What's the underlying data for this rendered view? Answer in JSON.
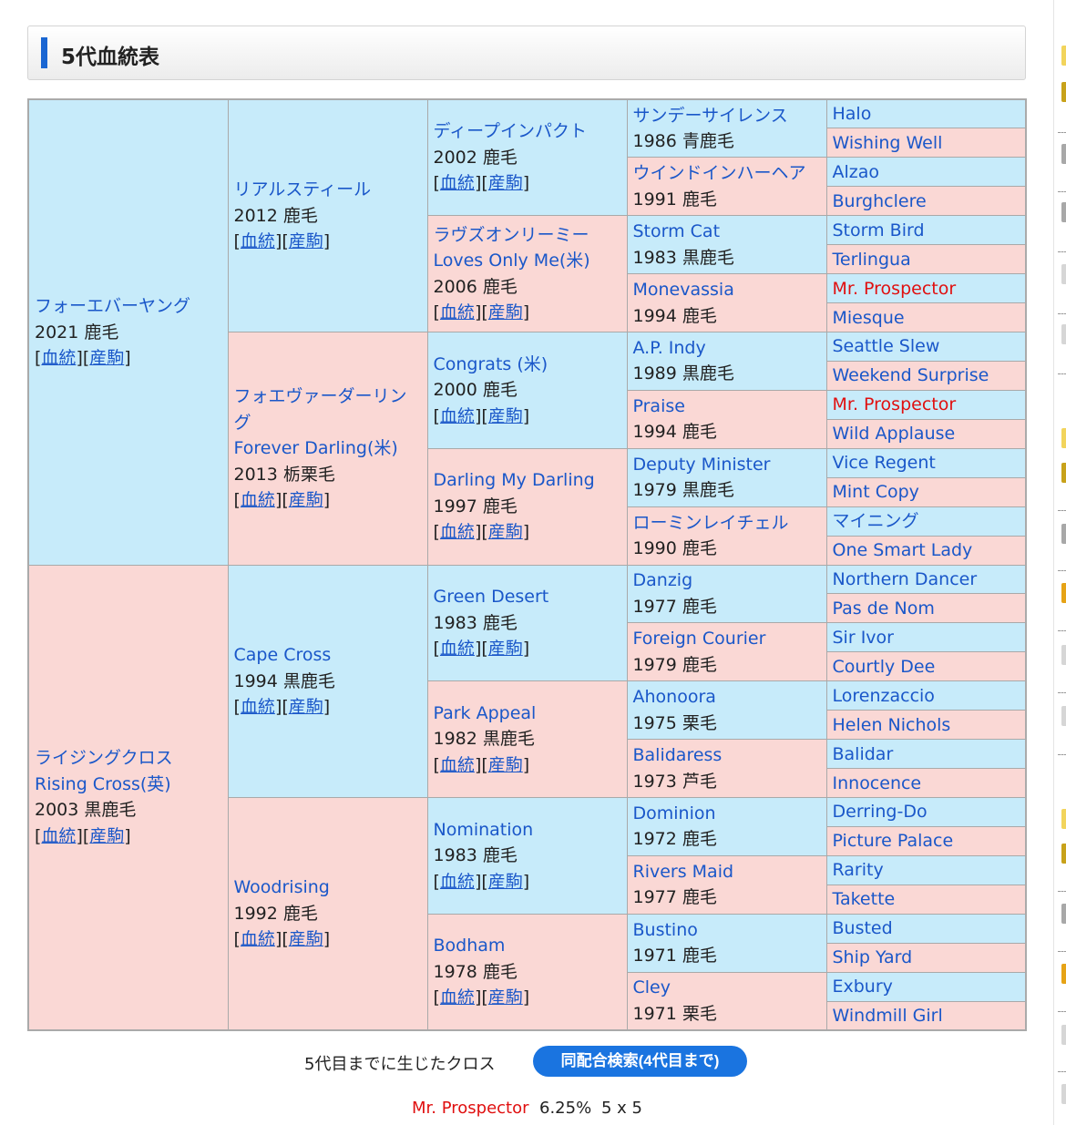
{
  "section_title": "5代血統表",
  "blood_label": "血統",
  "offspring_label": "産駒",
  "pedigree": {
    "g1": [
      {
        "name": "フォーエバーヤング",
        "sub": "",
        "year": "2021 鹿毛"
      },
      {
        "name": "ライジングクロス",
        "sub": "Rising Cross(英)",
        "year": "2003 黒鹿毛"
      }
    ],
    "g2": [
      {
        "name": "リアルスティール",
        "sub": "",
        "year": "2012 鹿毛"
      },
      {
        "name": "フォエヴァーダーリング",
        "sub": "Forever Darling(米)",
        "year": "2013 栃栗毛"
      },
      {
        "name": "Cape Cross",
        "sub": "",
        "year": "1994 黒鹿毛"
      },
      {
        "name": "Woodrising",
        "sub": "",
        "year": "1992 鹿毛"
      }
    ],
    "g3": [
      {
        "name": "ディープインパクト",
        "sub": "",
        "year": "2002 鹿毛"
      },
      {
        "name": "ラヴズオンリーミー",
        "sub": "Loves Only Me(米)",
        "year": "2006 鹿毛"
      },
      {
        "name": "Congrats (米)",
        "sub": "",
        "year": "2000 鹿毛"
      },
      {
        "name": "Darling My Darling",
        "sub": "",
        "year": "1997 鹿毛"
      },
      {
        "name": "Green Desert",
        "sub": "",
        "year": "1983 鹿毛"
      },
      {
        "name": "Park Appeal",
        "sub": "",
        "year": "1982 黒鹿毛"
      },
      {
        "name": "Nomination",
        "sub": "",
        "year": "1983 鹿毛"
      },
      {
        "name": "Bodham",
        "sub": "",
        "year": "1978 鹿毛"
      }
    ],
    "g4": [
      {
        "name": "サンデーサイレンス",
        "year": "1986 青鹿毛"
      },
      {
        "name": "ウインドインハーヘア",
        "year": "1991 鹿毛"
      },
      {
        "name": "Storm Cat",
        "year": "1983 黒鹿毛"
      },
      {
        "name": "Monevassia",
        "year": "1994 鹿毛"
      },
      {
        "name": "A.P. Indy",
        "year": "1989 黒鹿毛"
      },
      {
        "name": "Praise",
        "year": "1994 鹿毛"
      },
      {
        "name": "Deputy Minister",
        "year": "1979 黒鹿毛"
      },
      {
        "name": "ローミンレイチェル",
        "year": "1990 鹿毛"
      },
      {
        "name": "Danzig",
        "year": "1977 鹿毛"
      },
      {
        "name": "Foreign Courier",
        "year": "1979 鹿毛"
      },
      {
        "name": "Ahonoora",
        "year": "1975 栗毛"
      },
      {
        "name": "Balidaress",
        "year": "1973 芦毛"
      },
      {
        "name": "Dominion",
        "year": "1972 鹿毛"
      },
      {
        "name": "Rivers Maid",
        "year": "1977 鹿毛"
      },
      {
        "name": "Bustino",
        "year": "1971 鹿毛"
      },
      {
        "name": "Cley",
        "year": "1971 栗毛"
      }
    ],
    "g5": [
      {
        "name": "Halo",
        "cross": false
      },
      {
        "name": "Wishing Well",
        "cross": false
      },
      {
        "name": "Alzao",
        "cross": false
      },
      {
        "name": "Burghclere",
        "cross": false
      },
      {
        "name": "Storm Bird",
        "cross": false
      },
      {
        "name": "Terlingua",
        "cross": false
      },
      {
        "name": "Mr. Prospector",
        "cross": true
      },
      {
        "name": "Miesque",
        "cross": false
      },
      {
        "name": "Seattle Slew",
        "cross": false
      },
      {
        "name": "Weekend Surprise",
        "cross": false
      },
      {
        "name": "Mr. Prospector",
        "cross": true
      },
      {
        "name": "Wild Applause",
        "cross": false
      },
      {
        "name": "Vice Regent",
        "cross": false
      },
      {
        "name": "Mint Copy",
        "cross": false
      },
      {
        "name": "マイニング",
        "cross": false
      },
      {
        "name": "One Smart Lady",
        "cross": false
      },
      {
        "name": "Northern Dancer",
        "cross": false
      },
      {
        "name": "Pas de Nom",
        "cross": false
      },
      {
        "name": "Sir Ivor",
        "cross": false
      },
      {
        "name": "Courtly Dee",
        "cross": false
      },
      {
        "name": "Lorenzaccio",
        "cross": false
      },
      {
        "name": "Helen Nichols",
        "cross": false
      },
      {
        "name": "Balidar",
        "cross": false
      },
      {
        "name": "Innocence",
        "cross": false
      },
      {
        "name": "Derring-Do",
        "cross": false
      },
      {
        "name": "Picture Palace",
        "cross": false
      },
      {
        "name": "Rarity",
        "cross": false
      },
      {
        "name": "Takette",
        "cross": false
      },
      {
        "name": "Busted",
        "cross": false
      },
      {
        "name": "Ship Yard",
        "cross": false
      },
      {
        "name": "Exbury",
        "cross": false
      },
      {
        "name": "Windmill Girl",
        "cross": false
      }
    ]
  },
  "cross_section": {
    "label": "5代目までに生じたクロス",
    "search_button": "同配合検索(4代目まで)",
    "results": [
      {
        "horse": "Mr. Prospector",
        "percent": "6.25%",
        "generations": "5 x 5"
      }
    ]
  },
  "colors": {
    "sire_cell": "#c7ebfa",
    "dam_cell": "#fad8d5",
    "link": "#1a57c9",
    "cross_highlight": "#e01010",
    "button": "#1a74e0"
  }
}
